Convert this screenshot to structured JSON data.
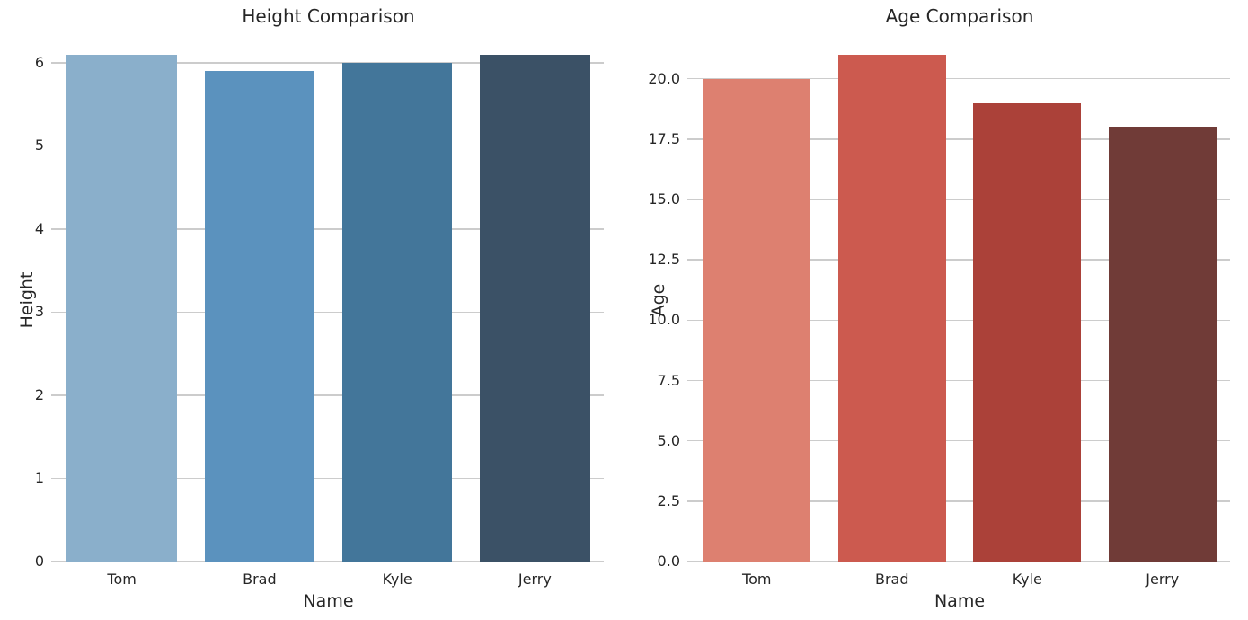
{
  "styles": {
    "background": "#ffffff",
    "grid_color": "#cccccc",
    "text_color": "#262626"
  },
  "chart_data": [
    {
      "type": "bar",
      "title": "Height Comparison",
      "xlabel": "Name",
      "ylabel": "Height",
      "categories": [
        "Tom",
        "Brad",
        "Kyle",
        "Jerry"
      ],
      "values": [
        6.1,
        5.9,
        6.0,
        6.1
      ],
      "bar_colors": [
        "#8AAFCB",
        "#5B92BE",
        "#43769A",
        "#3B5166"
      ],
      "ylim": [
        0,
        6.3
      ],
      "yticks": [
        0,
        1,
        2,
        3,
        4,
        5,
        6
      ],
      "ytick_labels": [
        "0",
        "1",
        "2",
        "3",
        "4",
        "5",
        "6"
      ],
      "grid": true,
      "legend": "none"
    },
    {
      "type": "bar",
      "title": "Age Comparison",
      "xlabel": "Name",
      "ylabel": "Age",
      "categories": [
        "Tom",
        "Brad",
        "Kyle",
        "Jerry"
      ],
      "values": [
        20,
        21,
        19,
        18
      ],
      "bar_colors": [
        "#DD8070",
        "#CC5A4F",
        "#AB4139",
        "#703B37"
      ],
      "ylim": [
        0,
        21.7
      ],
      "yticks": [
        0,
        2.5,
        5,
        7.5,
        10,
        12.5,
        15,
        17.5,
        20
      ],
      "ytick_labels": [
        "0.0",
        "2.5",
        "5.0",
        "7.5",
        "10.0",
        "12.5",
        "15.0",
        "17.5",
        "20.0"
      ],
      "grid": true,
      "legend": "none"
    }
  ]
}
